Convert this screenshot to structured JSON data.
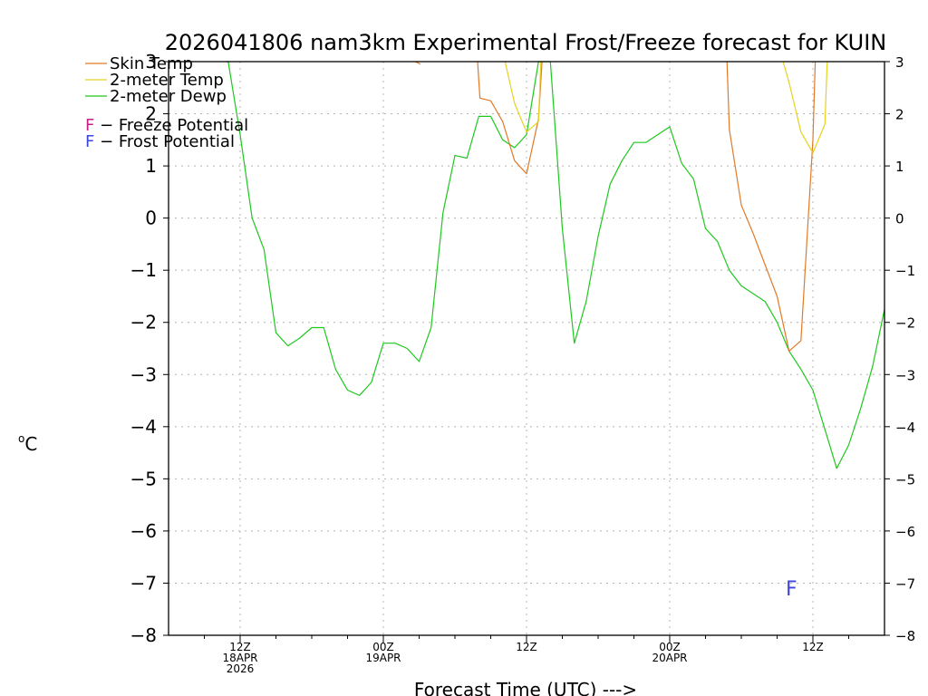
{
  "chart_data": {
    "type": "line",
    "title": "2026041806 nam3km Experimental Frost/Freeze forecast for KUIN",
    "xlabel": "Forecast Time (UTC) --->",
    "ylabel": "oC",
    "ylabel_sup": "o",
    "ylabel_main": "C",
    "ylim": [
      -8,
      3
    ],
    "xlim": [
      0,
      60
    ],
    "y_ticks": [
      -8,
      -7,
      -6,
      -5,
      -4,
      -3,
      -2,
      -1,
      0,
      1,
      2,
      3
    ],
    "grid": true,
    "x_ticks": [
      {
        "x": 6,
        "lines": [
          "12Z",
          "18APR",
          "2026"
        ]
      },
      {
        "x": 18,
        "lines": [
          "00Z",
          "19APR"
        ]
      },
      {
        "x": 30,
        "lines": [
          "12Z"
        ]
      },
      {
        "x": 42,
        "lines": [
          "00Z",
          "20APR"
        ]
      },
      {
        "x": 54,
        "lines": [
          "12Z"
        ]
      }
    ],
    "legend": {
      "position": "top-left",
      "entries": [
        {
          "name": "Skin Temp",
          "color": "#e07a28"
        },
        {
          "name": "2-meter Temp",
          "color": "#e6d21e"
        },
        {
          "name": "2-meter Dewp",
          "color": "#1ec81e"
        }
      ],
      "markers": [
        {
          "letter": "F",
          "text": " − Freeze Potential",
          "color": "#c81e8c"
        },
        {
          "letter": "F",
          "text": " − Frost Potential",
          "color": "#3c46dc"
        }
      ]
    },
    "annotations": [
      {
        "text": "F",
        "x": 52.2,
        "y": -7.1,
        "color": "#3c46dc",
        "meaning": "frost potential"
      }
    ],
    "series": [
      {
        "name": "2-meter Dewp",
        "color": "#1ec81e",
        "points": [
          [
            4.8,
            3.0
          ],
          [
            5,
            3.0
          ],
          [
            6,
            1.6
          ],
          [
            7,
            0.0
          ],
          [
            8,
            -0.6
          ],
          [
            9,
            -2.2
          ],
          [
            10,
            -2.45
          ],
          [
            11,
            -2.3
          ],
          [
            12,
            -2.1
          ],
          [
            13,
            -2.1
          ],
          [
            14,
            -2.9
          ],
          [
            15,
            -3.3
          ],
          [
            16,
            -3.4
          ],
          [
            17,
            -3.15
          ],
          [
            18,
            -2.4
          ],
          [
            19,
            -2.4
          ],
          [
            20,
            -2.5
          ],
          [
            21,
            -2.75
          ],
          [
            22,
            -2.1
          ],
          [
            23,
            0.1
          ],
          [
            24,
            1.2
          ],
          [
            25,
            1.15
          ],
          [
            26,
            1.95
          ],
          [
            27,
            1.95
          ],
          [
            28,
            1.5
          ],
          [
            29,
            1.35
          ],
          [
            30,
            1.6
          ],
          [
            31,
            3.0
          ],
          [
            32,
            3.0
          ],
          [
            33,
            -0.2
          ],
          [
            34,
            -2.4
          ],
          [
            35,
            -1.6
          ],
          [
            36,
            -0.35
          ],
          [
            37,
            0.65
          ],
          [
            38,
            1.1
          ],
          [
            39,
            1.45
          ],
          [
            40,
            1.45
          ],
          [
            41,
            1.6
          ],
          [
            42,
            1.75
          ],
          [
            43,
            1.05
          ],
          [
            44,
            0.75
          ],
          [
            45,
            -0.2
          ],
          [
            46,
            -0.45
          ],
          [
            47,
            -1.0
          ],
          [
            48,
            -1.3
          ],
          [
            49,
            -1.45
          ],
          [
            50,
            -1.6
          ],
          [
            51,
            -2.0
          ],
          [
            52,
            -2.55
          ],
          [
            53,
            -2.9
          ],
          [
            54,
            -3.3
          ],
          [
            55,
            -4.05
          ],
          [
            56,
            -4.8
          ],
          [
            57,
            -4.35
          ],
          [
            58,
            -3.65
          ],
          [
            59,
            -2.85
          ],
          [
            60,
            -1.75
          ]
        ]
      },
      {
        "name": "Skin Temp",
        "color": "#e07a28",
        "segments": [
          [
            [
              20.7,
              3.0
            ],
            [
              21.1,
              2.95
            ]
          ],
          [
            [
              25.9,
              3.0
            ],
            [
              26.1,
              2.3
            ],
            [
              27,
              2.25
            ],
            [
              28,
              1.85
            ],
            [
              29,
              1.1
            ],
            [
              30,
              0.85
            ],
            [
              31,
              1.9
            ],
            [
              31.3,
              3.0
            ]
          ],
          [
            [
              46.8,
              3.0
            ],
            [
              47,
              1.7
            ],
            [
              48,
              0.25
            ],
            [
              49,
              -0.3
            ],
            [
              50,
              -0.9
            ],
            [
              51,
              -1.5
            ],
            [
              52,
              -2.55
            ],
            [
              53,
              -2.35
            ],
            [
              54,
              1.5
            ],
            [
              54.2,
              3.0
            ]
          ]
        ]
      },
      {
        "name": "2-meter Temp",
        "color": "#e6d21e",
        "segments": [
          [
            [
              28.2,
              3.0
            ],
            [
              29,
              2.2
            ],
            [
              30,
              1.65
            ],
            [
              31,
              1.85
            ],
            [
              31.2,
              3.0
            ]
          ],
          [
            [
              51.5,
              3.0
            ],
            [
              52,
              2.6
            ],
            [
              53,
              1.65
            ],
            [
              54,
              1.25
            ],
            [
              55,
              1.8
            ],
            [
              55.2,
              3.0
            ]
          ]
        ]
      }
    ]
  }
}
